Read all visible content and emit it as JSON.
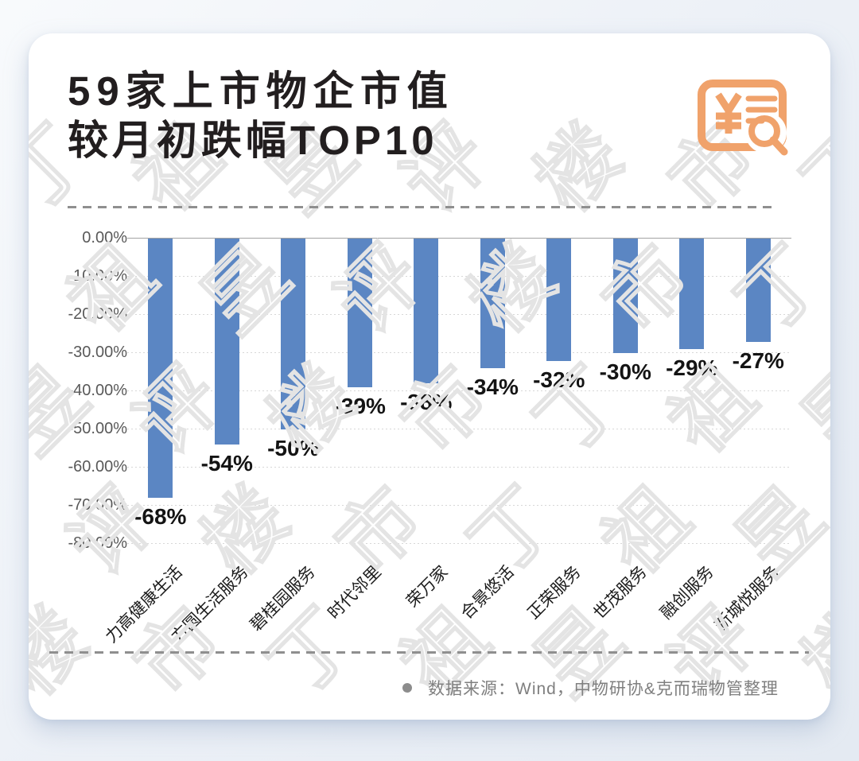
{
  "header": {
    "title_line1": "59家上市物企市值",
    "title_line2": "较月初跌幅TOP10",
    "icon": {
      "name": "money-voucher-search-icon",
      "color": "#F0A26B"
    }
  },
  "chart_data": {
    "type": "bar",
    "title": "59家上市物企市值较月初跌幅TOP10",
    "categories": [
      "力高健康生活",
      "方圆生活服务",
      "碧桂园服务",
      "时代邻里",
      "荣万家",
      "合景悠活",
      "正荣服务",
      "世茂服务",
      "融创服务",
      "新城悦服务"
    ],
    "values": [
      -68,
      -54,
      -50,
      -39,
      -38,
      -34,
      -32,
      -30,
      -29,
      -27
    ],
    "value_labels": [
      "-68%",
      "-54%",
      "-50%",
      "-39%",
      "-38%",
      "-34%",
      "-32%",
      "-30%",
      "-29%",
      "-27%"
    ],
    "xlabel": "",
    "ylabel": "",
    "ylim": [
      -80,
      0
    ],
    "yticks": [
      "0.00%",
      "-10.00%",
      "-20.00%",
      "-30.00%",
      "-40.00%",
      "-50.00%",
      "-60.00%",
      "-70.00%",
      "-80.00%"
    ],
    "grid": "horizontal-dotted",
    "legend": "none",
    "bar_color": "#5b86c3"
  },
  "watermark": {
    "text": "丁祖昱评楼市"
  },
  "footer": {
    "bullet": "•",
    "source_text": "数据来源：Wind，中物研协&克而瑞物管整理"
  },
  "colors": {
    "bar": "#5b86c3",
    "accent_orange": "#F0A26B",
    "axis_text": "#595959",
    "dashed_line": "#8f8f8f",
    "card_bg": "#ffffff",
    "page_bg": "#e9eef5"
  }
}
